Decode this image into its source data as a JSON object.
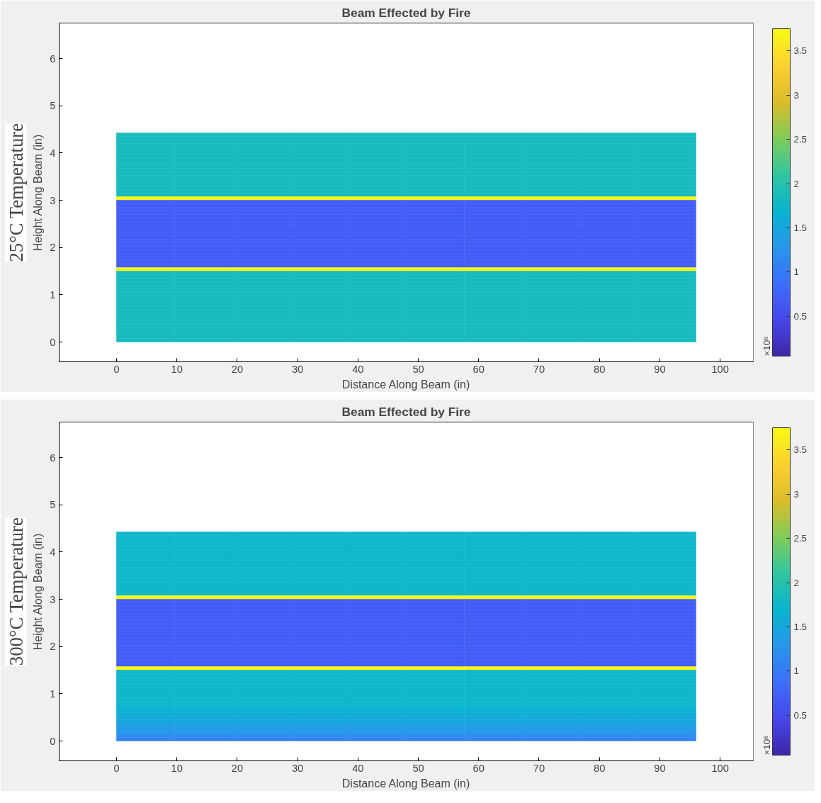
{
  "chart_data": [
    {
      "type": "heatmap",
      "title": "Beam Effected by Fire",
      "xlabel": "Distance Along Beam (in)",
      "ylabel": "Height Along Beam (in)",
      "clabel": "×10⁶",
      "annotations": [
        "25°C Temperature"
      ],
      "xlim": [
        -9.5,
        105.5
      ],
      "xticks": [
        0,
        10,
        20,
        30,
        40,
        50,
        60,
        70,
        80,
        90,
        100
      ],
      "ylim": [
        -0.42,
        6.75
      ],
      "yticks": [
        0,
        1,
        2,
        3,
        4,
        5,
        6
      ],
      "clim": [
        0.05,
        3.75
      ],
      "cticks": [
        0.5,
        1,
        1.5,
        2,
        2.5,
        3,
        3.5
      ],
      "x": [
        4.8,
        14.4,
        24,
        33.6,
        43.2,
        52.8,
        62.4,
        72,
        81.6,
        91.2
      ],
      "y": [
        4.3875,
        4.3125,
        4.2375,
        4.1625,
        4.0875,
        4.0125,
        3.9375,
        3.8625,
        3.7875,
        3.7125,
        3.6375,
        3.5625,
        3.4875,
        3.4125,
        3.3375,
        3.2625,
        3.1875,
        3.1125,
        3.0375,
        2.9625,
        2.8875,
        2.8125,
        2.7375,
        2.6625,
        2.5875,
        2.5125,
        2.4375,
        2.3625,
        2.2875,
        2.2125,
        2.1375,
        2.0625,
        1.9875,
        1.9125,
        1.8375,
        1.7625,
        1.6875,
        1.6125,
        1.5375,
        1.4625,
        1.3875,
        1.3125,
        1.2375,
        1.1625,
        1.0875,
        1.0125,
        0.9375,
        0.8625,
        0.7875,
        0.7125,
        0.6375,
        0.5625,
        0.4875,
        0.4125,
        0.3375,
        0.2625,
        0.1875,
        0.1125,
        0.0375
      ],
      "cells": [
        [
          1.85,
          1.85,
          1.85,
          1.85,
          1.85,
          1.85,
          1.85,
          1.85,
          1.85,
          1.85
        ],
        [
          1.85,
          1.85,
          1.85,
          1.85,
          1.85,
          1.85,
          1.85,
          1.85,
          1.85,
          1.85
        ],
        [
          1.85,
          1.85,
          1.85,
          1.85,
          1.85,
          1.85,
          1.85,
          1.85,
          1.85,
          1.85
        ],
        [
          1.85,
          1.85,
          1.85,
          1.85,
          1.85,
          1.85,
          1.85,
          1.85,
          1.85,
          1.85
        ],
        [
          1.85,
          1.85,
          1.85,
          1.85,
          1.85,
          1.85,
          1.85,
          1.85,
          1.85,
          1.85
        ],
        [
          1.85,
          1.85,
          1.85,
          1.85,
          1.85,
          1.85,
          1.85,
          1.85,
          1.85,
          1.85
        ],
        [
          1.85,
          1.85,
          1.85,
          1.85,
          1.85,
          1.85,
          1.85,
          1.85,
          1.85,
          1.85
        ],
        [
          1.85,
          1.85,
          1.85,
          1.85,
          1.85,
          1.85,
          1.85,
          1.85,
          1.85,
          1.85
        ],
        [
          1.85,
          1.85,
          1.85,
          1.85,
          1.85,
          1.85,
          1.85,
          1.85,
          1.85,
          1.85
        ],
        [
          1.85,
          1.85,
          1.85,
          1.85,
          1.85,
          1.85,
          1.85,
          1.85,
          1.85,
          1.85
        ],
        [
          1.85,
          1.85,
          1.85,
          1.85,
          1.85,
          1.85,
          1.85,
          1.85,
          1.85,
          1.85
        ],
        [
          1.85,
          1.85,
          1.85,
          1.85,
          1.85,
          1.85,
          1.85,
          1.85,
          1.85,
          1.85
        ],
        [
          1.85,
          1.85,
          1.85,
          1.85,
          1.85,
          1.85,
          1.85,
          1.85,
          1.85,
          1.85
        ],
        [
          1.85,
          1.85,
          1.85,
          1.85,
          1.85,
          1.85,
          1.85,
          1.85,
          1.85,
          1.85
        ],
        [
          1.85,
          1.85,
          1.85,
          1.85,
          1.85,
          1.85,
          1.85,
          1.85,
          1.85,
          1.85
        ],
        [
          1.85,
          1.85,
          1.85,
          1.85,
          1.85,
          1.85,
          1.85,
          1.85,
          1.85,
          1.85
        ],
        [
          1.85,
          1.85,
          1.85,
          1.85,
          1.85,
          1.85,
          1.85,
          1.85,
          1.85,
          1.85
        ],
        [
          1.85,
          1.85,
          1.85,
          1.85,
          1.85,
          1.85,
          1.85,
          1.85,
          1.85,
          1.85
        ],
        [
          3.7,
          3.7,
          3.7,
          3.7,
          3.7,
          3.7,
          3.7,
          3.7,
          3.7,
          3.7
        ],
        [
          0.7,
          0.7,
          0.7,
          0.7,
          0.7,
          0.7,
          0.7,
          0.7,
          0.7,
          0.7
        ],
        [
          0.7,
          0.7,
          0.7,
          0.7,
          0.7,
          0.7,
          0.7,
          0.7,
          0.7,
          0.7
        ],
        [
          0.7,
          0.7,
          0.7,
          0.7,
          0.7,
          0.7,
          0.7,
          0.7,
          0.7,
          0.7
        ],
        [
          0.7,
          0.7,
          0.7,
          0.7,
          0.7,
          0.7,
          0.7,
          0.7,
          0.7,
          0.7
        ],
        [
          0.7,
          0.7,
          0.7,
          0.7,
          0.7,
          0.7,
          0.7,
          0.7,
          0.7,
          0.7
        ],
        [
          0.7,
          0.7,
          0.7,
          0.7,
          0.7,
          0.7,
          0.7,
          0.7,
          0.7,
          0.7
        ],
        [
          0.7,
          0.7,
          0.7,
          0.7,
          0.7,
          0.7,
          0.7,
          0.7,
          0.7,
          0.7
        ],
        [
          0.7,
          0.7,
          0.7,
          0.7,
          0.7,
          0.7,
          0.7,
          0.7,
          0.7,
          0.7
        ],
        [
          0.7,
          0.7,
          0.7,
          0.7,
          0.7,
          0.7,
          0.7,
          0.7,
          0.7,
          0.7
        ],
        [
          0.7,
          0.7,
          0.7,
          0.7,
          0.7,
          0.7,
          0.7,
          0.7,
          0.7,
          0.7
        ],
        [
          0.7,
          0.7,
          0.7,
          0.7,
          0.7,
          0.7,
          0.7,
          0.7,
          0.7,
          0.7
        ],
        [
          0.7,
          0.7,
          0.7,
          0.7,
          0.7,
          0.7,
          0.7,
          0.7,
          0.7,
          0.7
        ],
        [
          0.7,
          0.7,
          0.7,
          0.7,
          0.7,
          0.7,
          0.7,
          0.7,
          0.7,
          0.7
        ],
        [
          0.7,
          0.7,
          0.7,
          0.7,
          0.7,
          0.7,
          0.7,
          0.7,
          0.7,
          0.7
        ],
        [
          0.7,
          0.7,
          0.7,
          0.7,
          0.7,
          0.7,
          0.7,
          0.7,
          0.7,
          0.7
        ],
        [
          0.7,
          0.7,
          0.7,
          0.7,
          0.7,
          0.7,
          0.7,
          0.7,
          0.7,
          0.7
        ],
        [
          0.7,
          0.7,
          0.7,
          0.7,
          0.7,
          0.7,
          0.7,
          0.7,
          0.7,
          0.7
        ],
        [
          0.7,
          0.7,
          0.7,
          0.7,
          0.7,
          0.7,
          0.7,
          0.7,
          0.7,
          0.7
        ],
        [
          0.7,
          0.7,
          0.7,
          0.7,
          0.7,
          0.7,
          0.7,
          0.7,
          0.7,
          0.7
        ],
        [
          3.7,
          3.7,
          3.7,
          3.7,
          3.7,
          3.7,
          3.7,
          3.7,
          3.7,
          3.7
        ],
        [
          1.85,
          1.85,
          1.85,
          1.85,
          1.85,
          1.85,
          1.85,
          1.85,
          1.85,
          1.85
        ],
        [
          1.85,
          1.85,
          1.85,
          1.85,
          1.85,
          1.85,
          1.85,
          1.85,
          1.85,
          1.85
        ],
        [
          1.85,
          1.85,
          1.85,
          1.85,
          1.85,
          1.85,
          1.85,
          1.85,
          1.85,
          1.85
        ],
        [
          1.85,
          1.85,
          1.85,
          1.85,
          1.85,
          1.85,
          1.85,
          1.85,
          1.85,
          1.85
        ],
        [
          1.85,
          1.85,
          1.85,
          1.85,
          1.85,
          1.85,
          1.85,
          1.85,
          1.85,
          1.85
        ],
        [
          1.85,
          1.85,
          1.85,
          1.85,
          1.85,
          1.85,
          1.85,
          1.85,
          1.85,
          1.85
        ],
        [
          1.85,
          1.85,
          1.85,
          1.85,
          1.85,
          1.85,
          1.85,
          1.85,
          1.85,
          1.85
        ],
        [
          1.85,
          1.85,
          1.85,
          1.85,
          1.85,
          1.85,
          1.85,
          1.85,
          1.85,
          1.85
        ],
        [
          1.85,
          1.85,
          1.85,
          1.85,
          1.85,
          1.85,
          1.85,
          1.85,
          1.85,
          1.85
        ],
        [
          1.85,
          1.85,
          1.85,
          1.85,
          1.85,
          1.85,
          1.85,
          1.85,
          1.85,
          1.85
        ],
        [
          1.85,
          1.85,
          1.85,
          1.85,
          1.85,
          1.85,
          1.85,
          1.85,
          1.85,
          1.85
        ],
        [
          1.85,
          1.85,
          1.85,
          1.85,
          1.85,
          1.85,
          1.85,
          1.85,
          1.85,
          1.85
        ],
        [
          1.85,
          1.85,
          1.85,
          1.85,
          1.85,
          1.85,
          1.85,
          1.85,
          1.85,
          1.85
        ],
        [
          1.85,
          1.85,
          1.85,
          1.85,
          1.85,
          1.85,
          1.85,
          1.85,
          1.85,
          1.85
        ],
        [
          1.85,
          1.85,
          1.85,
          1.85,
          1.85,
          1.85,
          1.85,
          1.85,
          1.85,
          1.85
        ],
        [
          1.85,
          1.85,
          1.85,
          1.85,
          1.85,
          1.85,
          1.85,
          1.85,
          1.85,
          1.85
        ],
        [
          1.85,
          1.85,
          1.85,
          1.85,
          1.85,
          1.85,
          1.85,
          1.85,
          1.85,
          1.85
        ],
        [
          1.85,
          1.85,
          1.85,
          1.85,
          1.85,
          1.85,
          1.85,
          1.85,
          1.85,
          1.85
        ],
        [
          1.85,
          1.85,
          1.85,
          1.85,
          1.85,
          1.85,
          1.85,
          1.85,
          1.85,
          1.85
        ],
        [
          1.85,
          1.85,
          1.85,
          1.85,
          1.85,
          1.85,
          1.85,
          1.85,
          1.85,
          1.85
        ]
      ]
    },
    {
      "type": "heatmap",
      "title": "Beam Effected by Fire",
      "xlabel": "Distance Along Beam (in)",
      "ylabel": "Height Along Beam (in)",
      "clabel": "×10⁶",
      "annotations": [
        "300°C Temperature"
      ],
      "xlim": [
        -9.5,
        105.5
      ],
      "xticks": [
        0,
        10,
        20,
        30,
        40,
        50,
        60,
        70,
        80,
        90,
        100
      ],
      "ylim": [
        -0.42,
        6.75
      ],
      "yticks": [
        0,
        1,
        2,
        3,
        4,
        5,
        6
      ],
      "clim": [
        0.05,
        3.75
      ],
      "cticks": [
        0.5,
        1,
        1.5,
        2,
        2.5,
        3,
        3.5
      ],
      "x": [
        4.8,
        14.4,
        24,
        33.6,
        43.2,
        52.8,
        62.4,
        72,
        81.6,
        91.2
      ],
      "y": [
        4.3875,
        4.3125,
        4.2375,
        4.1625,
        4.0875,
        4.0125,
        3.9375,
        3.8625,
        3.7875,
        3.7125,
        3.6375,
        3.5625,
        3.4875,
        3.4125,
        3.3375,
        3.2625,
        3.1875,
        3.1125,
        3.0375,
        2.9625,
        2.8875,
        2.8125,
        2.7375,
        2.6625,
        2.5875,
        2.5125,
        2.4375,
        2.3625,
        2.2875,
        2.2125,
        2.1375,
        2.0625,
        1.9875,
        1.9125,
        1.8375,
        1.7625,
        1.6875,
        1.6125,
        1.5375,
        1.4625,
        1.3875,
        1.3125,
        1.2375,
        1.1625,
        1.0875,
        1.0125,
        0.9375,
        0.8625,
        0.7875,
        0.7125,
        0.6375,
        0.5625,
        0.4875,
        0.4125,
        0.3375,
        0.2625,
        0.1875,
        0.1125,
        0.0375
      ],
      "cells": [
        [
          1.75,
          1.75,
          1.75,
          1.75,
          1.75,
          1.75,
          1.75,
          1.75,
          1.75,
          1.75
        ],
        [
          1.75,
          1.75,
          1.75,
          1.75,
          1.75,
          1.75,
          1.75,
          1.75,
          1.75,
          1.75
        ],
        [
          1.75,
          1.75,
          1.75,
          1.75,
          1.75,
          1.75,
          1.75,
          1.75,
          1.75,
          1.75
        ],
        [
          1.75,
          1.75,
          1.75,
          1.75,
          1.75,
          1.75,
          1.75,
          1.75,
          1.75,
          1.75
        ],
        [
          1.75,
          1.75,
          1.75,
          1.75,
          1.75,
          1.75,
          1.75,
          1.75,
          1.75,
          1.75
        ],
        [
          1.75,
          1.75,
          1.75,
          1.75,
          1.75,
          1.75,
          1.75,
          1.75,
          1.75,
          1.75
        ],
        [
          1.75,
          1.75,
          1.75,
          1.75,
          1.75,
          1.75,
          1.75,
          1.75,
          1.75,
          1.75
        ],
        [
          1.75,
          1.75,
          1.75,
          1.75,
          1.75,
          1.75,
          1.75,
          1.75,
          1.75,
          1.75
        ],
        [
          1.75,
          1.75,
          1.75,
          1.75,
          1.75,
          1.75,
          1.75,
          1.75,
          1.75,
          1.75
        ],
        [
          1.75,
          1.75,
          1.75,
          1.75,
          1.75,
          1.75,
          1.75,
          1.75,
          1.75,
          1.75
        ],
        [
          1.75,
          1.75,
          1.75,
          1.75,
          1.75,
          1.75,
          1.75,
          1.75,
          1.75,
          1.75
        ],
        [
          1.75,
          1.75,
          1.75,
          1.75,
          1.75,
          1.75,
          1.75,
          1.75,
          1.75,
          1.75
        ],
        [
          1.75,
          1.75,
          1.75,
          1.75,
          1.75,
          1.75,
          1.75,
          1.75,
          1.75,
          1.75
        ],
        [
          1.75,
          1.75,
          1.75,
          1.75,
          1.75,
          1.75,
          1.75,
          1.75,
          1.75,
          1.75
        ],
        [
          1.75,
          1.75,
          1.75,
          1.75,
          1.75,
          1.75,
          1.75,
          1.75,
          1.75,
          1.75
        ],
        [
          1.75,
          1.75,
          1.75,
          1.75,
          1.75,
          1.75,
          1.75,
          1.75,
          1.75,
          1.75
        ],
        [
          1.75,
          1.75,
          1.75,
          1.75,
          1.75,
          1.75,
          1.75,
          1.75,
          1.75,
          1.75
        ],
        [
          1.75,
          1.75,
          1.75,
          1.75,
          1.75,
          1.75,
          1.75,
          1.75,
          1.75,
          1.75
        ],
        [
          3.7,
          3.7,
          3.7,
          3.7,
          3.7,
          3.7,
          3.7,
          3.7,
          3.7,
          3.7
        ],
        [
          0.7,
          0.7,
          0.7,
          0.7,
          0.7,
          0.7,
          0.7,
          0.7,
          0.7,
          0.7
        ],
        [
          0.7,
          0.7,
          0.7,
          0.7,
          0.7,
          0.7,
          0.7,
          0.7,
          0.7,
          0.7
        ],
        [
          0.7,
          0.7,
          0.7,
          0.7,
          0.7,
          0.7,
          0.7,
          0.7,
          0.7,
          0.7
        ],
        [
          0.7,
          0.7,
          0.7,
          0.7,
          0.7,
          0.7,
          0.7,
          0.7,
          0.7,
          0.7
        ],
        [
          0.7,
          0.7,
          0.7,
          0.7,
          0.7,
          0.7,
          0.7,
          0.7,
          0.7,
          0.7
        ],
        [
          0.7,
          0.7,
          0.7,
          0.7,
          0.7,
          0.7,
          0.7,
          0.7,
          0.7,
          0.7
        ],
        [
          0.7,
          0.7,
          0.7,
          0.7,
          0.7,
          0.7,
          0.7,
          0.7,
          0.7,
          0.7
        ],
        [
          0.7,
          0.7,
          0.7,
          0.7,
          0.7,
          0.7,
          0.7,
          0.7,
          0.7,
          0.7
        ],
        [
          0.7,
          0.7,
          0.7,
          0.7,
          0.7,
          0.7,
          0.7,
          0.7,
          0.7,
          0.7
        ],
        [
          0.7,
          0.7,
          0.7,
          0.7,
          0.7,
          0.7,
          0.7,
          0.7,
          0.7,
          0.7
        ],
        [
          0.7,
          0.7,
          0.7,
          0.7,
          0.7,
          0.7,
          0.7,
          0.7,
          0.7,
          0.7
        ],
        [
          0.7,
          0.7,
          0.7,
          0.7,
          0.7,
          0.7,
          0.7,
          0.7,
          0.7,
          0.7
        ],
        [
          0.7,
          0.7,
          0.7,
          0.7,
          0.7,
          0.7,
          0.7,
          0.7,
          0.7,
          0.7
        ],
        [
          0.7,
          0.7,
          0.7,
          0.7,
          0.7,
          0.7,
          0.7,
          0.7,
          0.7,
          0.7
        ],
        [
          0.7,
          0.7,
          0.7,
          0.7,
          0.7,
          0.7,
          0.7,
          0.7,
          0.7,
          0.7
        ],
        [
          0.7,
          0.7,
          0.7,
          0.7,
          0.7,
          0.7,
          0.7,
          0.7,
          0.7,
          0.7
        ],
        [
          0.7,
          0.7,
          0.7,
          0.7,
          0.7,
          0.7,
          0.7,
          0.7,
          0.7,
          0.7
        ],
        [
          0.7,
          0.7,
          0.7,
          0.7,
          0.7,
          0.7,
          0.7,
          0.7,
          0.7,
          0.7
        ],
        [
          0.7,
          0.7,
          0.7,
          0.7,
          0.7,
          0.7,
          0.7,
          0.7,
          0.7,
          0.7
        ],
        [
          3.7,
          3.7,
          3.7,
          3.7,
          3.7,
          3.7,
          3.7,
          3.7,
          3.7,
          3.7
        ],
        [
          1.75,
          1.75,
          1.75,
          1.75,
          1.75,
          1.75,
          1.75,
          1.75,
          1.75,
          1.75
        ],
        [
          1.75,
          1.75,
          1.75,
          1.75,
          1.75,
          1.75,
          1.75,
          1.75,
          1.75,
          1.75
        ],
        [
          1.75,
          1.75,
          1.75,
          1.75,
          1.75,
          1.75,
          1.75,
          1.75,
          1.75,
          1.75
        ],
        [
          1.75,
          1.75,
          1.75,
          1.75,
          1.75,
          1.75,
          1.75,
          1.75,
          1.75,
          1.75
        ],
        [
          1.75,
          1.75,
          1.75,
          1.75,
          1.75,
          1.75,
          1.75,
          1.75,
          1.75,
          1.75
        ],
        [
          1.75,
          1.75,
          1.75,
          1.75,
          1.75,
          1.75,
          1.75,
          1.75,
          1.75,
          1.75
        ],
        [
          1.75,
          1.75,
          1.75,
          1.75,
          1.75,
          1.75,
          1.75,
          1.75,
          1.75,
          1.75
        ],
        [
          1.75,
          1.75,
          1.75,
          1.75,
          1.75,
          1.75,
          1.75,
          1.75,
          1.75,
          1.75
        ],
        [
          1.75,
          1.75,
          1.75,
          1.75,
          1.75,
          1.75,
          1.75,
          1.75,
          1.75,
          1.75
        ],
        [
          1.75,
          1.75,
          1.75,
          1.75,
          1.75,
          1.75,
          1.75,
          1.75,
          1.75,
          1.75
        ],
        [
          1.7,
          1.7,
          1.7,
          1.7,
          1.7,
          1.7,
          1.7,
          1.7,
          1.7,
          1.7
        ],
        [
          1.65,
          1.65,
          1.65,
          1.65,
          1.65,
          1.65,
          1.65,
          1.65,
          1.65,
          1.65
        ],
        [
          1.6,
          1.6,
          1.6,
          1.6,
          1.6,
          1.6,
          1.6,
          1.6,
          1.6,
          1.6
        ],
        [
          1.55,
          1.55,
          1.55,
          1.55,
          1.55,
          1.55,
          1.55,
          1.55,
          1.55,
          1.55
        ],
        [
          1.5,
          1.5,
          1.5,
          1.5,
          1.5,
          1.5,
          1.5,
          1.5,
          1.5,
          1.5
        ],
        [
          1.4,
          1.4,
          1.4,
          1.4,
          1.4,
          1.4,
          1.4,
          1.4,
          1.4,
          1.4
        ],
        [
          1.35,
          1.35,
          1.35,
          1.35,
          1.35,
          1.35,
          1.35,
          1.35,
          1.35,
          1.35
        ],
        [
          1.3,
          1.3,
          1.3,
          1.3,
          1.3,
          1.3,
          1.3,
          1.3,
          1.3,
          1.3
        ],
        [
          1.2,
          1.2,
          1.2,
          1.2,
          1.2,
          1.2,
          1.2,
          1.2,
          1.2,
          1.2
        ],
        [
          1.1,
          1.1,
          1.1,
          1.1,
          1.1,
          1.1,
          1.1,
          1.1,
          1.1,
          1.1
        ]
      ]
    }
  ]
}
